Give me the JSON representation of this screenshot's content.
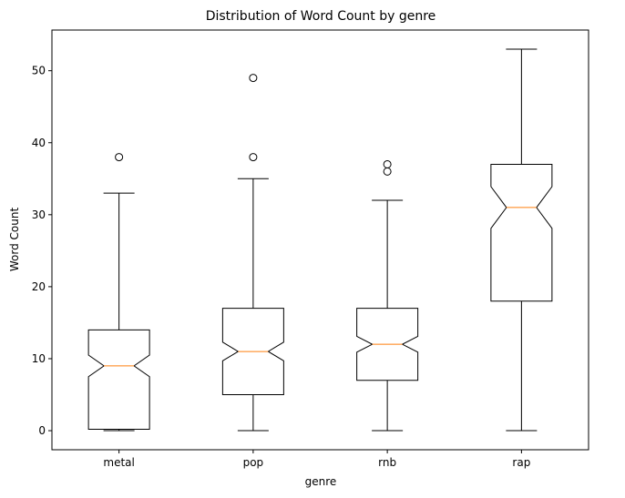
{
  "chart_data": {
    "type": "boxplot",
    "title": "Distribution of Word Count by genre",
    "xlabel": "genre",
    "ylabel": "Word Count",
    "ylim": [
      -2.65,
      55.65
    ],
    "yticks": [
      "0",
      "10",
      "20",
      "30",
      "40",
      "50"
    ],
    "notched": true,
    "grid": false,
    "categories": [
      "metal",
      "pop",
      "rnb",
      "rap"
    ],
    "boxes": [
      {
        "label": "metal",
        "whisker_low": 0,
        "q1": 0.2,
        "median": 9,
        "q3": 14,
        "whisker_high": 33,
        "notch_low": 7.5,
        "notch_high": 10.5,
        "outliers": [
          38
        ]
      },
      {
        "label": "pop",
        "whisker_low": 0,
        "q1": 5,
        "median": 11,
        "q3": 17,
        "whisker_high": 35,
        "notch_low": 9.7,
        "notch_high": 12.3,
        "outliers": [
          38,
          49
        ]
      },
      {
        "label": "rnb",
        "whisker_low": 0,
        "q1": 7,
        "median": 12,
        "q3": 17,
        "whisker_high": 32,
        "notch_low": 10.9,
        "notch_high": 13.1,
        "outliers": [
          36,
          37
        ]
      },
      {
        "label": "rap",
        "whisker_low": 0,
        "q1": 18,
        "median": 31,
        "q3": 37,
        "whisker_high": 53,
        "notch_low": 28.1,
        "notch_high": 33.9,
        "outliers": []
      }
    ],
    "colors": {
      "box": "#000000",
      "median": "#ff7f0e",
      "background": "#ffffff"
    }
  }
}
